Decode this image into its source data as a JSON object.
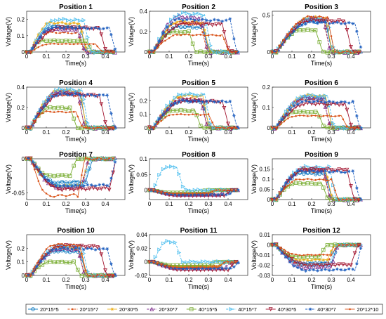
{
  "figure": {
    "legend": {
      "entries": [
        {
          "name": "20*15*5",
          "color": "#0072BD",
          "marker": "circle"
        },
        {
          "name": "20*15*7",
          "color": "#D95319",
          "marker": "dot"
        },
        {
          "name": "20*30*5",
          "color": "#EDB120",
          "marker": "star"
        },
        {
          "name": "20*30*7",
          "color": "#7E2F8E",
          "marker": "triangle-up"
        },
        {
          "name": "40*15*5",
          "color": "#77AC30",
          "marker": "square"
        },
        {
          "name": "40*15*7",
          "color": "#4DBEEE",
          "marker": "triangle-right"
        },
        {
          "name": "40*30*5",
          "color": "#A2142F",
          "marker": "triangle-down"
        },
        {
          "name": "40*30*7",
          "color": "#1F5FBF",
          "marker": "star"
        },
        {
          "name": "20*12*10",
          "color": "#D95319",
          "marker": "dot"
        }
      ]
    }
  },
  "chart_data": [
    {
      "type": "line",
      "title": "Position 1",
      "xlabel": "Time(s)",
      "ylabel": "Voltage(V)",
      "xlim": [
        0,
        0.5
      ],
      "ylim": [
        0,
        0.25
      ],
      "xticks": [
        "0",
        "0.1",
        "0.2",
        "0.3",
        "0.4"
      ],
      "yticks": [
        "0",
        "0.1",
        "0.2"
      ],
      "series": [
        {
          "name": "20*15*5",
          "peak": 0.16,
          "rise": 0.13,
          "fall": 0.27
        },
        {
          "name": "20*15*7",
          "peak": 0.12,
          "rise": 0.11,
          "fall": 0.26
        },
        {
          "name": "20*30*5",
          "peak": 0.18,
          "rise": 0.12,
          "fall": 0.27
        },
        {
          "name": "20*30*7",
          "peak": 0.14,
          "rise": 0.12,
          "fall": 0.26
        },
        {
          "name": "40*15*5",
          "peak": 0.07,
          "rise": 0.08,
          "fall": 0.3
        },
        {
          "name": "40*15*7",
          "peak": 0.2,
          "rise": 0.16,
          "fall": 0.29
        },
        {
          "name": "40*30*5",
          "peak": 0.15,
          "rise": 0.17,
          "fall": 0.37
        },
        {
          "name": "40*30*7",
          "peak": 0.15,
          "rise": 0.14,
          "fall": 0.42
        },
        {
          "name": "20*12*10",
          "peak": 0.05,
          "rise": 0.12,
          "fall": 0.35
        }
      ]
    },
    {
      "type": "line",
      "title": "Position 2",
      "xlabel": "Time(s)",
      "ylabel": "Voltage(V)",
      "xlim": [
        0,
        0.5
      ],
      "ylim": [
        0,
        0.4
      ],
      "xticks": [
        "0",
        "0.1",
        "0.2",
        "0.3",
        "0.4"
      ],
      "yticks": [
        "0",
        "0.2",
        "0.4"
      ],
      "series": [
        {
          "name": "20*15*5",
          "peak": 0.25,
          "rise": 0.15,
          "fall": 0.27
        },
        {
          "name": "20*15*7",
          "peak": 0.28,
          "rise": 0.14,
          "fall": 0.26
        },
        {
          "name": "20*30*5",
          "peak": 0.3,
          "rise": 0.15,
          "fall": 0.27
        },
        {
          "name": "20*30*7",
          "peak": 0.35,
          "rise": 0.15,
          "fall": 0.26
        },
        {
          "name": "40*15*5",
          "peak": 0.2,
          "rise": 0.12,
          "fall": 0.2
        },
        {
          "name": "40*15*7",
          "peak": 0.38,
          "rise": 0.17,
          "fall": 0.28
        },
        {
          "name": "40*30*5",
          "peak": 0.28,
          "rise": 0.18,
          "fall": 0.37
        },
        {
          "name": "40*30*7",
          "peak": 0.32,
          "rise": 0.15,
          "fall": 0.41
        },
        {
          "name": "20*12*10",
          "peak": 0.17,
          "rise": 0.15,
          "fall": 0.37
        }
      ]
    },
    {
      "type": "line",
      "title": "Position 3",
      "xlabel": "Time(s)",
      "ylabel": "Voltage(V)",
      "xlim": [
        0,
        0.5
      ],
      "ylim": [
        0,
        0.55
      ],
      "xticks": [
        "0",
        "0.1",
        "0.2",
        "0.3",
        "0.4"
      ],
      "yticks": [
        "0",
        "0.5"
      ],
      "series": [
        {
          "name": "20*15*5",
          "peak": 0.42,
          "rise": 0.2,
          "fall": 0.27
        },
        {
          "name": "20*15*7",
          "peak": 0.45,
          "rise": 0.2,
          "fall": 0.26
        },
        {
          "name": "20*30*5",
          "peak": 0.47,
          "rise": 0.2,
          "fall": 0.27
        },
        {
          "name": "20*30*7",
          "peak": 0.46,
          "rise": 0.2,
          "fall": 0.26
        },
        {
          "name": "40*15*5",
          "peak": 0.3,
          "rise": 0.15,
          "fall": 0.22
        },
        {
          "name": "40*15*7",
          "peak": 0.45,
          "rise": 0.2,
          "fall": 0.28
        },
        {
          "name": "40*30*5",
          "peak": 0.43,
          "rise": 0.2,
          "fall": 0.37
        },
        {
          "name": "40*30*7",
          "peak": 0.4,
          "rise": 0.2,
          "fall": 0.42
        },
        {
          "name": "20*12*10",
          "peak": 0.48,
          "rise": 0.2,
          "fall": 0.28
        }
      ]
    },
    {
      "type": "line",
      "title": "Position 4",
      "xlabel": "Time(s)",
      "ylabel": "Voltage(V)",
      "xlim": [
        0,
        0.5
      ],
      "ylim": [
        0,
        0.4
      ],
      "xticks": [
        "0",
        "0.1",
        "0.2",
        "0.3",
        "0.4"
      ],
      "yticks": [
        "0",
        "0.2",
        "0.4"
      ],
      "series": [
        {
          "name": "20*15*5",
          "peak": 0.35,
          "rise": 0.17,
          "fall": 0.27
        },
        {
          "name": "20*15*7",
          "peak": 0.33,
          "rise": 0.16,
          "fall": 0.26
        },
        {
          "name": "20*30*5",
          "peak": 0.37,
          "rise": 0.17,
          "fall": 0.27
        },
        {
          "name": "20*30*7",
          "peak": 0.36,
          "rise": 0.17,
          "fall": 0.26
        },
        {
          "name": "40*15*5",
          "peak": 0.2,
          "rise": 0.12,
          "fall": 0.22
        },
        {
          "name": "40*15*7",
          "peak": 0.38,
          "rise": 0.18,
          "fall": 0.28
        },
        {
          "name": "40*30*5",
          "peak": 0.33,
          "rise": 0.18,
          "fall": 0.37
        },
        {
          "name": "40*30*7",
          "peak": 0.33,
          "rise": 0.17,
          "fall": 0.41
        },
        {
          "name": "20*12*10",
          "peak": 0.16,
          "rise": 0.1,
          "fall": 0.25
        }
      ]
    },
    {
      "type": "line",
      "title": "Position 5",
      "xlabel": "Time(s)",
      "ylabel": "Voltage(V)",
      "xlim": [
        0,
        0.5
      ],
      "ylim": [
        0,
        0.3
      ],
      "xticks": [
        "0",
        "0.1",
        "0.2",
        "0.3",
        "0.4"
      ],
      "yticks": [
        "0",
        "0.1",
        "0.2"
      ],
      "series": [
        {
          "name": "20*15*5",
          "peak": 0.2,
          "rise": 0.17,
          "fall": 0.27
        },
        {
          "name": "20*15*7",
          "peak": 0.22,
          "rise": 0.17,
          "fall": 0.26
        },
        {
          "name": "20*30*5",
          "peak": 0.24,
          "rise": 0.18,
          "fall": 0.27
        },
        {
          "name": "20*30*7",
          "peak": 0.21,
          "rise": 0.17,
          "fall": 0.26
        },
        {
          "name": "40*15*5",
          "peak": 0.13,
          "rise": 0.13,
          "fall": 0.23
        },
        {
          "name": "40*15*7",
          "peak": 0.25,
          "rise": 0.18,
          "fall": 0.28
        },
        {
          "name": "40*30*5",
          "peak": 0.2,
          "rise": 0.18,
          "fall": 0.37
        },
        {
          "name": "40*30*7",
          "peak": 0.2,
          "rise": 0.17,
          "fall": 0.41
        },
        {
          "name": "20*12*10",
          "peak": 0.1,
          "rise": 0.13,
          "fall": 0.3
        }
      ]
    },
    {
      "type": "line",
      "title": "Position 6",
      "xlabel": "Time(s)",
      "ylabel": "Voltage(V)",
      "xlim": [
        0,
        0.5
      ],
      "ylim": [
        0,
        0.2
      ],
      "xticks": [
        "0",
        "0.1",
        "0.2",
        "0.3",
        "0.4"
      ],
      "yticks": [
        "0",
        "0.1",
        "0.2"
      ],
      "series": [
        {
          "name": "20*15*5",
          "peak": 0.15,
          "rise": 0.17,
          "fall": 0.27
        },
        {
          "name": "20*15*7",
          "peak": 0.14,
          "rise": 0.17,
          "fall": 0.26
        },
        {
          "name": "20*30*5",
          "peak": 0.16,
          "rise": 0.18,
          "fall": 0.27
        },
        {
          "name": "20*30*7",
          "peak": 0.15,
          "rise": 0.17,
          "fall": 0.26
        },
        {
          "name": "40*15*5",
          "peak": 0.08,
          "rise": 0.12,
          "fall": 0.23
        },
        {
          "name": "40*15*7",
          "peak": 0.16,
          "rise": 0.18,
          "fall": 0.28
        },
        {
          "name": "40*30*5",
          "peak": 0.12,
          "rise": 0.18,
          "fall": 0.37
        },
        {
          "name": "40*30*7",
          "peak": 0.13,
          "rise": 0.17,
          "fall": 0.41
        },
        {
          "name": "20*12*10",
          "peak": 0.06,
          "rise": 0.13,
          "fall": 0.35
        }
      ]
    },
    {
      "type": "line",
      "title": "Position 7",
      "xlabel": "Time(s)",
      "ylabel": "Voltage(V)",
      "xlim": [
        0,
        0.5
      ],
      "ylim": [
        -0.06,
        0
      ],
      "xticks": [
        "0",
        "0.1",
        "0.2",
        "0.3",
        "0.4"
      ],
      "yticks": [
        "-0.05",
        "0"
      ],
      "series": [
        {
          "name": "20*15*5",
          "peak": -0.035,
          "rise": 0.15,
          "fall": 0.3
        },
        {
          "name": "20*15*7",
          "peak": -0.04,
          "rise": 0.15,
          "fall": 0.28
        },
        {
          "name": "20*30*5",
          "peak": -0.04,
          "rise": 0.15,
          "fall": 0.28
        },
        {
          "name": "20*30*7",
          "peak": -0.042,
          "rise": 0.16,
          "fall": 0.28
        },
        {
          "name": "40*15*5",
          "peak": -0.025,
          "rise": 0.12,
          "fall": 0.22
        },
        {
          "name": "40*15*7",
          "peak": -0.04,
          "rise": 0.17,
          "fall": 0.29
        },
        {
          "name": "40*30*5",
          "peak": -0.045,
          "rise": 0.18,
          "fall": 0.42
        },
        {
          "name": "40*30*7",
          "peak": -0.04,
          "rise": 0.17,
          "fall": 0.42
        },
        {
          "name": "20*12*10",
          "peak": -0.055,
          "rise": 0.12,
          "fall": 0.26
        }
      ]
    },
    {
      "type": "line",
      "title": "Position 8",
      "xlabel": "Time(s)",
      "ylabel": "Voltage(V)",
      "xlim": [
        0,
        0.5
      ],
      "ylim": [
        -0.03,
        0.1
      ],
      "xticks": [
        "0",
        "0.1",
        "0.2",
        "0.3",
        "0.4"
      ],
      "yticks": [
        "0",
        "0.05",
        "0.1"
      ],
      "series": [
        {
          "name": "20*15*5",
          "peak": -0.012,
          "rise": 0.12,
          "fall": 0.3
        },
        {
          "name": "20*15*7",
          "peak": -0.01,
          "rise": 0.12,
          "fall": 0.3
        },
        {
          "name": "20*30*5",
          "peak": -0.012,
          "rise": 0.12,
          "fall": 0.3
        },
        {
          "name": "20*30*7",
          "peak": -0.015,
          "rise": 0.15,
          "fall": 0.35
        },
        {
          "name": "40*15*5",
          "peak": -0.008,
          "rise": 0.1,
          "fall": 0.25
        },
        {
          "name": "40*15*7",
          "peak": 0.075,
          "rise": 0.09,
          "fall": 0.14
        },
        {
          "name": "40*30*5",
          "peak": -0.018,
          "rise": 0.15,
          "fall": 0.38
        },
        {
          "name": "40*30*7",
          "peak": -0.015,
          "rise": 0.15,
          "fall": 0.4
        },
        {
          "name": "20*12*10",
          "peak": -0.01,
          "rise": 0.12,
          "fall": 0.3
        }
      ]
    },
    {
      "type": "line",
      "title": "Position 9",
      "xlabel": "Time(s)",
      "ylabel": "Voltage(V)",
      "xlim": [
        0,
        0.5
      ],
      "ylim": [
        0,
        0.2
      ],
      "xticks": [
        "0",
        "0.1",
        "0.2",
        "0.3",
        "0.4"
      ],
      "yticks": [
        "0",
        "0.05",
        "0.1",
        "0.15"
      ],
      "series": [
        {
          "name": "20*15*5",
          "peak": 0.13,
          "rise": 0.15,
          "fall": 0.27
        },
        {
          "name": "20*15*7",
          "peak": 0.14,
          "rise": 0.15,
          "fall": 0.26
        },
        {
          "name": "20*30*5",
          "peak": 0.15,
          "rise": 0.16,
          "fall": 0.27
        },
        {
          "name": "20*30*7",
          "peak": 0.15,
          "rise": 0.16,
          "fall": 0.26
        },
        {
          "name": "40*15*5",
          "peak": 0.08,
          "rise": 0.12,
          "fall": 0.25
        },
        {
          "name": "40*15*7",
          "peak": 0.16,
          "rise": 0.17,
          "fall": 0.29
        },
        {
          "name": "40*30*5",
          "peak": 0.15,
          "rise": 0.17,
          "fall": 0.38
        },
        {
          "name": "40*30*7",
          "peak": 0.14,
          "rise": 0.15,
          "fall": 0.41
        },
        {
          "name": "20*12*10",
          "peak": 0.1,
          "rise": 0.14,
          "fall": 0.3
        }
      ]
    },
    {
      "type": "line",
      "title": "Position 10",
      "xlabel": "Time(s)",
      "ylabel": "Voltage(V)",
      "xlim": [
        0,
        0.5
      ],
      "ylim": [
        0,
        0.3
      ],
      "xticks": [
        "0",
        "0.1",
        "0.2",
        "0.3",
        "0.4"
      ],
      "yticks": [
        "0",
        "0.1",
        "0.2"
      ],
      "series": [
        {
          "name": "20*15*5",
          "peak": 0.18,
          "rise": 0.15,
          "fall": 0.27
        },
        {
          "name": "20*15*7",
          "peak": 0.2,
          "rise": 0.16,
          "fall": 0.26
        },
        {
          "name": "20*30*5",
          "peak": 0.21,
          "rise": 0.17,
          "fall": 0.27
        },
        {
          "name": "20*30*7",
          "peak": 0.2,
          "rise": 0.17,
          "fall": 0.26
        },
        {
          "name": "40*15*5",
          "peak": 0.1,
          "rise": 0.12,
          "fall": 0.24
        },
        {
          "name": "40*15*7",
          "peak": 0.22,
          "rise": 0.17,
          "fall": 0.28
        },
        {
          "name": "40*30*5",
          "peak": 0.22,
          "rise": 0.18,
          "fall": 0.37
        },
        {
          "name": "40*30*7",
          "peak": 0.2,
          "rise": 0.17,
          "fall": 0.41
        },
        {
          "name": "20*12*10",
          "peak": 0.23,
          "rise": 0.15,
          "fall": 0.27
        }
      ]
    },
    {
      "type": "line",
      "title": "Position 11",
      "xlabel": "Time(s)",
      "ylabel": "Voltage(V)",
      "xlim": [
        0,
        0.5
      ],
      "ylim": [
        -0.02,
        0.04
      ],
      "xticks": [
        "0",
        "0.1",
        "0.2",
        "0.3",
        "0.4"
      ],
      "yticks": [
        "-0.02",
        "0",
        "0.02",
        "0.04"
      ],
      "series": [
        {
          "name": "20*15*5",
          "peak": -0.008,
          "rise": 0.15,
          "fall": 0.35
        },
        {
          "name": "20*15*7",
          "peak": -0.006,
          "rise": 0.15,
          "fall": 0.35
        },
        {
          "name": "20*30*5",
          "peak": -0.007,
          "rise": 0.15,
          "fall": 0.35
        },
        {
          "name": "20*30*7",
          "peak": -0.01,
          "rise": 0.16,
          "fall": 0.38
        },
        {
          "name": "40*15*5",
          "peak": -0.005,
          "rise": 0.12,
          "fall": 0.3
        },
        {
          "name": "40*15*7",
          "peak": 0.03,
          "rise": 0.09,
          "fall": 0.13
        },
        {
          "name": "40*30*5",
          "peak": -0.012,
          "rise": 0.17,
          "fall": 0.4
        },
        {
          "name": "40*30*7",
          "peak": -0.01,
          "rise": 0.16,
          "fall": 0.42
        },
        {
          "name": "20*12*10",
          "peak": -0.008,
          "rise": 0.14,
          "fall": 0.35
        }
      ]
    },
    {
      "type": "line",
      "title": "Position 12",
      "xlabel": "Time(s)",
      "ylabel": "Voltage(V)",
      "xlim": [
        0,
        0.5
      ],
      "ylim": [
        -0.03,
        0.01
      ],
      "xticks": [
        "0",
        "0.1",
        "0.2",
        "0.3",
        "0.4"
      ],
      "yticks": [
        "-0.03",
        "-0.02",
        "-0.01",
        "0",
        "0.01"
      ],
      "series": [
        {
          "name": "20*15*5",
          "peak": -0.018,
          "rise": 0.15,
          "fall": 0.3
        },
        {
          "name": "20*15*7",
          "peak": -0.02,
          "rise": 0.15,
          "fall": 0.28
        },
        {
          "name": "20*30*5",
          "peak": -0.015,
          "rise": 0.15,
          "fall": 0.28
        },
        {
          "name": "20*30*7",
          "peak": -0.022,
          "rise": 0.16,
          "fall": 0.3
        },
        {
          "name": "40*15*5",
          "peak": -0.012,
          "rise": 0.12,
          "fall": 0.24
        },
        {
          "name": "40*15*7",
          "peak": -0.02,
          "rise": 0.17,
          "fall": 0.29
        },
        {
          "name": "40*30*5",
          "peak": -0.02,
          "rise": 0.18,
          "fall": 0.4
        },
        {
          "name": "40*30*7",
          "peak": -0.025,
          "rise": 0.17,
          "fall": 0.42
        },
        {
          "name": "20*12*10",
          "peak": -0.01,
          "rise": 0.14,
          "fall": 0.3
        }
      ]
    }
  ]
}
